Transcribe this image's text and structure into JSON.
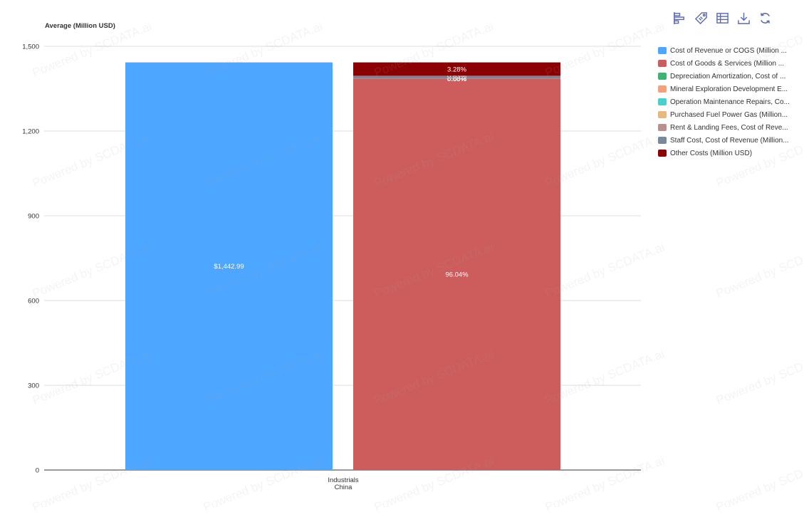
{
  "toolbar": {
    "icons": [
      "bar-chart-icon",
      "tag-icon",
      "table-icon",
      "download-icon",
      "refresh-icon"
    ],
    "color": "#5b6bb0"
  },
  "watermark": "Powered by SCDATA.ai",
  "chart_data": {
    "type": "bar",
    "ylabel": "Average (Million USD)",
    "ylim": [
      0,
      1500
    ],
    "yticks": [
      0,
      300,
      600,
      900,
      1200,
      1500
    ],
    "ytick_labels": [
      "0",
      "300",
      "600",
      "900",
      "1,200",
      "1,500"
    ],
    "category_label_lines": [
      "Industrials",
      "China"
    ],
    "grid": true,
    "legend_position": "right",
    "total_bar": {
      "series": "Cost of Revenue or COGS (Million ...",
      "value": 1442.99,
      "label": "$1,442.99",
      "color": "#4da6ff"
    },
    "stacked_bar": {
      "total": 1442.99,
      "segments": [
        {
          "series": "Cost of Goods & Services (Million ...",
          "percent": 96.04,
          "label": "96.04%",
          "color": "#cd5c5c"
        },
        {
          "series": "Depreciation Amortization, Cost of ...",
          "percent": 0.0,
          "label": "0.00%",
          "color": "#3cb371"
        },
        {
          "series": "Mineral Exploration Development E...",
          "percent": 0.0,
          "label": "0.00%",
          "color": "#f4a07a"
        },
        {
          "series": "Operation Maintenance Repairs, Co...",
          "percent": 0.0,
          "label": "0.00%",
          "color": "#48d1cc"
        },
        {
          "series": "Purchased Fuel Power Gas (Million...",
          "percent": 0.0,
          "label": "0.00%",
          "color": "#e6b87e"
        },
        {
          "series": "Rent & Landing Fees, Cost of Reve...",
          "percent": 0.05,
          "label": "0.05%",
          "color": "#bc8f8f"
        },
        {
          "series": "Staff Cost, Cost of Revenue (Million...",
          "percent": 0.63,
          "label": "0.63%",
          "color": "#778899"
        },
        {
          "series": "Other Costs (Million USD)",
          "percent": 3.28,
          "label": "3.28%",
          "color": "#8b0000"
        }
      ]
    },
    "legend": [
      {
        "label": "Cost of Revenue or COGS (Million ...",
        "color": "#4da6ff"
      },
      {
        "label": "Cost of Goods & Services (Million ...",
        "color": "#cd5c5c"
      },
      {
        "label": "Depreciation Amortization, Cost of ...",
        "color": "#3cb371"
      },
      {
        "label": "Mineral Exploration Development E...",
        "color": "#f4a07a"
      },
      {
        "label": "Operation Maintenance Repairs, Co...",
        "color": "#48d1cc"
      },
      {
        "label": "Purchased Fuel Power Gas (Million...",
        "color": "#e6b87e"
      },
      {
        "label": "Rent & Landing Fees, Cost of Reve...",
        "color": "#bc8f8f"
      },
      {
        "label": "Staff Cost, Cost of Revenue (Million...",
        "color": "#778899"
      },
      {
        "label": "Other Costs (Million USD)",
        "color": "#8b0000"
      }
    ]
  }
}
